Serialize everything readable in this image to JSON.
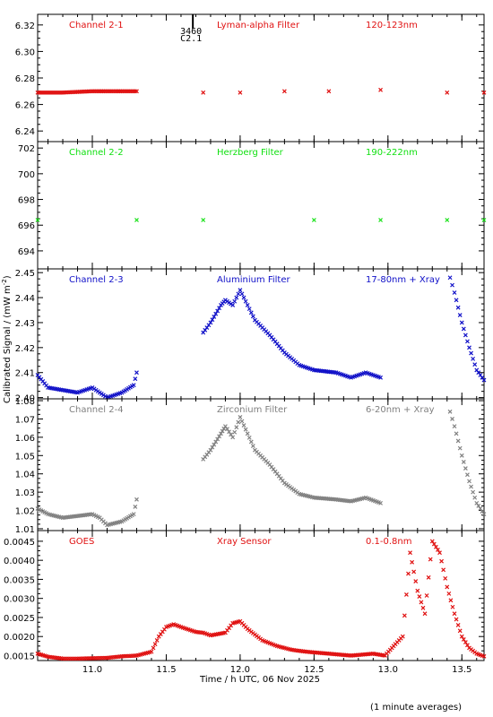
{
  "footer_note": "(1 minute averages)",
  "xlabel": "Time / h UTC, 06 Nov 2025",
  "ylabel": "Calibrated Signal / (mW m",
  "ylabel_sup": "-2",
  "ylabel_end": ")",
  "marker": {
    "line1": "3460",
    "line2": "C2.1",
    "x": 11.68
  },
  "colors": {
    "red": "#e01010",
    "green": "#10e010",
    "blue": "#1010c8",
    "gray": "#808080",
    "black": "#000000"
  },
  "chart_data": [
    {
      "type": "scatter",
      "labels": [
        "Channel 2-1",
        "Lyman-alpha Filter",
        "120-123nm"
      ],
      "color": "red",
      "xlim": [
        10.63,
        13.65
      ],
      "ylim": [
        6.232,
        6.328
      ],
      "yticks": [
        "6.24",
        "6.26",
        "6.28",
        "6.30",
        "6.32"
      ],
      "yticks_values": [
        6.24,
        6.26,
        6.28,
        6.3,
        6.32
      ],
      "series": [
        {
          "points": [
            [
              10.63,
              6.269
            ],
            [
              10.8,
              6.269
            ],
            [
              11.0,
              6.27
            ],
            [
              11.15,
              6.27
            ],
            [
              11.3,
              6.27
            ],
            [
              11.75,
              6.269
            ],
            [
              12.0,
              6.269
            ],
            [
              12.3,
              6.27
            ],
            [
              12.6,
              6.27
            ],
            [
              12.95,
              6.271
            ],
            [
              13.4,
              6.269
            ],
            [
              13.65,
              6.269
            ]
          ]
        }
      ]
    },
    {
      "type": "scatter",
      "labels": [
        "Channel 2-2",
        "Herzberg Filter",
        "190-222nm"
      ],
      "color": "green",
      "xlim": [
        10.63,
        13.65
      ],
      "ylim": [
        692.6,
        702.5
      ],
      "yticks": [
        "694",
        "696",
        "698",
        "700",
        "702"
      ],
      "yticks_values": [
        694,
        696,
        698,
        700,
        702
      ],
      "series": [
        {
          "points": [
            [
              10.63,
              696.4
            ],
            [
              11.3,
              696.4
            ],
            [
              11.75,
              696.4
            ],
            [
              12.5,
              696.4
            ],
            [
              12.95,
              696.4
            ],
            [
              13.4,
              696.4
            ],
            [
              13.65,
              696.4
            ]
          ]
        }
      ]
    },
    {
      "type": "scatter",
      "labels": [
        "Channel 2-3",
        "Aluminium Filter",
        "17-80nm + Xray"
      ],
      "color": "blue",
      "xlim": [
        10.63,
        13.65
      ],
      "ylim": [
        2.3995,
        2.4515
      ],
      "yticks": [
        "2.40",
        "2.41",
        "2.42",
        "2.43",
        "2.44",
        "2.45"
      ],
      "yticks_values": [
        2.4,
        2.41,
        2.42,
        2.43,
        2.44,
        2.45
      ],
      "series": [
        {
          "points": [
            [
              10.63,
              2.409
            ],
            [
              10.7,
              2.404
            ],
            [
              10.8,
              2.403
            ],
            [
              10.9,
              2.402
            ],
            [
              11.0,
              2.404
            ],
            [
              11.05,
              2.402
            ],
            [
              11.1,
              2.4
            ],
            [
              11.2,
              2.402
            ],
            [
              11.28,
              2.405
            ],
            [
              11.3,
              2.41
            ],
            [
              11.75,
              2.426
            ],
            [
              11.8,
              2.43
            ],
            [
              11.87,
              2.437
            ],
            [
              11.9,
              2.439
            ],
            [
              11.95,
              2.437
            ],
            [
              12.0,
              2.443
            ],
            [
              12.05,
              2.437
            ],
            [
              12.1,
              2.431
            ],
            [
              12.2,
              2.425
            ],
            [
              12.3,
              2.418
            ],
            [
              12.4,
              2.413
            ],
            [
              12.5,
              2.411
            ],
            [
              12.65,
              2.41
            ],
            [
              12.75,
              2.408
            ],
            [
              12.85,
              2.41
            ],
            [
              12.95,
              2.408
            ],
            [
              13.42,
              2.448
            ],
            [
              13.45,
              2.442
            ],
            [
              13.5,
              2.43
            ],
            [
              13.55,
              2.42
            ],
            [
              13.6,
              2.411
            ],
            [
              13.65,
              2.407
            ]
          ]
        }
      ]
    },
    {
      "type": "scatter",
      "labels": [
        "Channel 2-4",
        "Zirconium Filter",
        "6-20nm + Xray"
      ],
      "color": "gray",
      "xlim": [
        10.63,
        13.65
      ],
      "ylim": [
        1.009,
        1.081
      ],
      "yticks": [
        "1.01",
        "1.02",
        "1.03",
        "1.04",
        "1.05",
        "1.06",
        "1.07",
        "1.08"
      ],
      "yticks_values": [
        1.01,
        1.02,
        1.03,
        1.04,
        1.05,
        1.06,
        1.07,
        1.08
      ],
      "series": [
        {
          "points": [
            [
              10.63,
              1.021
            ],
            [
              10.7,
              1.018
            ],
            [
              10.8,
              1.016
            ],
            [
              10.9,
              1.017
            ],
            [
              11.0,
              1.018
            ],
            [
              11.05,
              1.016
            ],
            [
              11.1,
              1.012
            ],
            [
              11.2,
              1.014
            ],
            [
              11.28,
              1.018
            ],
            [
              11.3,
              1.026
            ],
            [
              11.75,
              1.048
            ],
            [
              11.8,
              1.053
            ],
            [
              11.87,
              1.062
            ],
            [
              11.9,
              1.066
            ],
            [
              11.95,
              1.06
            ],
            [
              12.0,
              1.071
            ],
            [
              12.05,
              1.062
            ],
            [
              12.1,
              1.053
            ],
            [
              12.2,
              1.045
            ],
            [
              12.3,
              1.035
            ],
            [
              12.4,
              1.029
            ],
            [
              12.5,
              1.027
            ],
            [
              12.65,
              1.026
            ],
            [
              12.75,
              1.025
            ],
            [
              12.85,
              1.027
            ],
            [
              12.95,
              1.024
            ],
            [
              13.42,
              1.074
            ],
            [
              13.45,
              1.066
            ],
            [
              13.5,
              1.05
            ],
            [
              13.55,
              1.036
            ],
            [
              13.6,
              1.024
            ],
            [
              13.65,
              1.018
            ]
          ]
        }
      ]
    },
    {
      "type": "scatter",
      "labels": [
        "GOES",
        "Xray Sensor",
        "0.1-0.8nm"
      ],
      "color": "red",
      "xlim": [
        10.63,
        13.65
      ],
      "ylim": [
        0.00137,
        0.00478
      ],
      "yticks": [
        "0.0015",
        "0.0020",
        "0.0025",
        "0.0030",
        "0.0035",
        "0.0040",
        "0.0045"
      ],
      "yticks_values": [
        0.0015,
        0.002,
        0.0025,
        0.003,
        0.0035,
        0.004,
        0.0045
      ],
      "series": [
        {
          "points": [
            [
              10.63,
              0.00155
            ],
            [
              10.7,
              0.00147
            ],
            [
              10.8,
              0.00142
            ],
            [
              10.9,
              0.00142
            ],
            [
              11.0,
              0.00143
            ],
            [
              11.1,
              0.00144
            ],
            [
              11.2,
              0.00148
            ],
            [
              11.3,
              0.0015
            ],
            [
              11.4,
              0.0016
            ],
            [
              11.45,
              0.002
            ],
            [
              11.5,
              0.00225
            ],
            [
              11.55,
              0.00232
            ],
            [
              11.6,
              0.00225
            ],
            [
              11.7,
              0.00212
            ],
            [
              11.75,
              0.0021
            ],
            [
              11.8,
              0.00203
            ],
            [
              11.9,
              0.0021
            ],
            [
              11.95,
              0.00235
            ],
            [
              12.0,
              0.0024
            ],
            [
              12.05,
              0.0022
            ],
            [
              12.15,
              0.0019
            ],
            [
              12.25,
              0.00175
            ],
            [
              12.35,
              0.00165
            ],
            [
              12.45,
              0.0016
            ],
            [
              12.6,
              0.00155
            ],
            [
              12.75,
              0.0015
            ],
            [
              12.9,
              0.00155
            ],
            [
              12.98,
              0.0015
            ],
            [
              13.05,
              0.0018
            ],
            [
              13.1,
              0.002
            ],
            [
              13.15,
              0.0042
            ],
            [
              13.2,
              0.0032
            ],
            [
              13.25,
              0.0026
            ],
            [
              13.3,
              0.0045
            ],
            [
              13.35,
              0.0042
            ],
            [
              13.4,
              0.0033
            ],
            [
              13.45,
              0.0026
            ],
            [
              13.5,
              0.002
            ],
            [
              13.55,
              0.0017
            ],
            [
              13.6,
              0.00155
            ],
            [
              13.65,
              0.00148
            ]
          ]
        }
      ]
    }
  ],
  "xticks": [
    "11.0",
    "11.5",
    "12.0",
    "12.5",
    "13.0",
    "13.5"
  ],
  "xticks_values": [
    11.0,
    11.5,
    12.0,
    12.5,
    13.0,
    13.5
  ]
}
